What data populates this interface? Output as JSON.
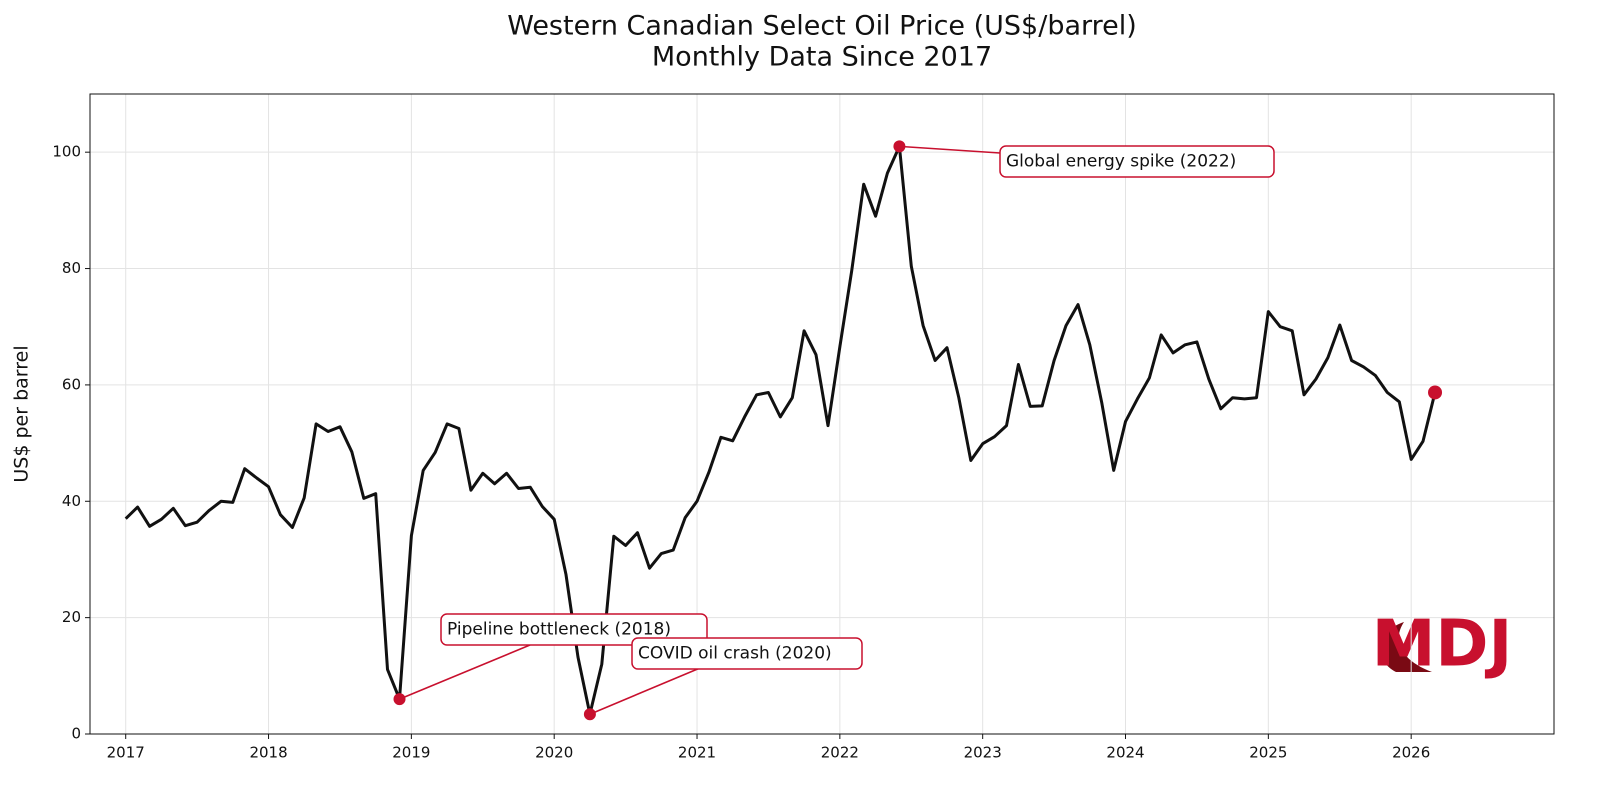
{
  "chart_data": {
    "type": "line",
    "title": "Western Canadian Select Oil Price (US$/barrel)",
    "subtitle": "Monthly Data Since 2017",
    "y_label": "US$ per barrel",
    "logo": "MDJ",
    "x": [
      2017.0,
      2017.083,
      2017.167,
      2017.25,
      2017.333,
      2017.417,
      2017.5,
      2017.583,
      2017.667,
      2017.75,
      2017.833,
      2017.917,
      2018.0,
      2018.083,
      2018.167,
      2018.25,
      2018.333,
      2018.417,
      2018.5,
      2018.583,
      2018.667,
      2018.75,
      2018.833,
      2018.917,
      2019.0,
      2019.083,
      2019.167,
      2019.25,
      2019.333,
      2019.417,
      2019.5,
      2019.583,
      2019.667,
      2019.75,
      2019.833,
      2019.917,
      2020.0,
      2020.083,
      2020.167,
      2020.25,
      2020.333,
      2020.417,
      2020.5,
      2020.583,
      2020.667,
      2020.75,
      2020.833,
      2020.917,
      2021.0,
      2021.083,
      2021.167,
      2021.25,
      2021.333,
      2021.417,
      2021.5,
      2021.583,
      2021.667,
      2021.75,
      2021.833,
      2021.917,
      2022.0,
      2022.083,
      2022.167,
      2022.25,
      2022.333,
      2022.417,
      2022.5,
      2022.583,
      2022.667,
      2022.75,
      2022.833,
      2022.917,
      2023.0,
      2023.083,
      2023.167,
      2023.25,
      2023.333,
      2023.417,
      2023.5,
      2023.583,
      2023.667,
      2023.75,
      2023.833,
      2023.917,
      2024.0,
      2024.083,
      2024.167,
      2024.25,
      2024.333,
      2024.417,
      2024.5,
      2024.583,
      2024.667,
      2024.75,
      2024.833,
      2024.917,
      2025.0,
      2025.083,
      2025.167,
      2025.25,
      2025.333,
      2025.417,
      2025.5,
      2025.583,
      2025.667,
      2025.75,
      2025.833,
      2025.917,
      2026.0,
      2026.083,
      2026.167
    ],
    "series": [
      {
        "name": "WCS",
        "color": "#111111",
        "values": [
          37,
          39,
          35.7,
          36.9,
          38.8,
          35.8,
          36.4,
          38.4,
          40,
          39.8,
          45.6,
          44,
          42.5,
          37.7,
          35.5,
          40.6,
          53.3,
          52,
          52.8,
          48.5,
          40.5,
          41.3,
          11.1,
          6,
          34.1,
          45.3,
          48.4,
          53.3,
          52.5,
          41.9,
          44.8,
          43,
          44.8,
          42.2,
          42.4,
          39.1,
          36.9,
          27.4,
          13.2,
          3.4,
          12,
          34,
          32.4,
          34.6,
          28.5,
          31,
          31.6,
          37.2,
          40,
          45,
          51,
          50.4,
          54.5,
          58.3,
          58.7,
          54.5,
          57.8,
          69.3,
          65.2,
          53,
          66.6,
          79.6,
          94.5,
          89,
          96.4,
          101,
          80.4,
          70.2,
          64.2,
          66.4,
          57.8,
          47,
          49.9,
          51.1,
          53,
          63.5,
          56.3,
          56.4,
          64.2,
          70.2,
          73.8,
          66.9,
          57,
          45.3,
          53.7,
          57.6,
          61.2,
          68.6,
          65.5,
          66.9,
          67.4,
          61,
          55.9,
          57.8,
          57.6,
          57.8,
          72.6,
          70,
          69.3,
          58.3,
          61,
          64.7,
          70.3,
          64.2,
          63.1,
          61.6,
          58.7,
          57.1,
          47.2,
          50.3,
          58.7
        ]
      }
    ],
    "annotations": [
      {
        "text": "Pipeline bottleneck (2018)",
        "x": 2018.917,
        "y": 6
      },
      {
        "text": "COVID oil crash (2020)",
        "x": 2020.25,
        "y": 3.4
      },
      {
        "text": "Global energy spike (2022)",
        "x": 2022.417,
        "y": 101
      }
    ],
    "highlight_color": "#c8102e",
    "highlight_last": true,
    "xlim": [
      2016.75,
      2027.0
    ],
    "ylim": [
      0,
      110
    ],
    "xticks": [
      2017,
      2018,
      2019,
      2020,
      2021,
      2022,
      2023,
      2024,
      2025,
      2026
    ],
    "yticks": [
      0,
      20,
      40,
      60,
      80,
      100
    ],
    "grid": true
  }
}
